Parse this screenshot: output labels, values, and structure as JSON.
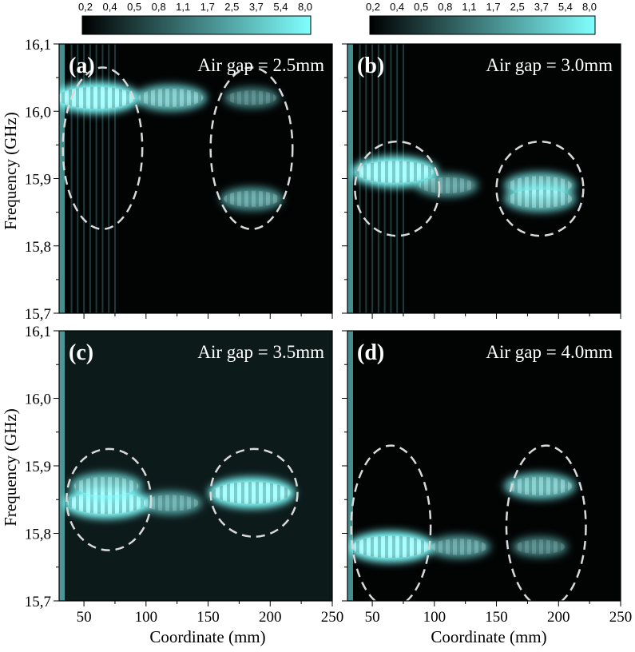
{
  "figure": {
    "xlabel": "Coordinate (mm)",
    "ylabel": "Frequency (GHz)",
    "x_ticks": [
      "50",
      "100",
      "150",
      "200",
      "250"
    ],
    "y_ticks": [
      "16,1",
      "16,0",
      "15,9",
      "15,8",
      "15,7"
    ]
  },
  "colorbar": {
    "labels": [
      "0,2",
      "0,4",
      "0,5",
      "0,8",
      "1,1",
      "1,7",
      "2,5",
      "3,7",
      "5,4",
      "8,0"
    ],
    "color_low": "#000000",
    "color_high": "#80ffff"
  },
  "chart_data": [
    {
      "type": "heatmap",
      "panel": "(a)",
      "title": "Air gap = 2.5mm",
      "xlim": [
        30,
        250
      ],
      "ylim": [
        15.7,
        16.1
      ],
      "hotspots": [
        {
          "x": 60,
          "y": 16.02,
          "intensity": 8.0
        },
        {
          "x": 120,
          "y": 16.02,
          "intensity": 5.4
        },
        {
          "x": 185,
          "y": 16.02,
          "intensity": 2.5
        },
        {
          "x": 185,
          "y": 15.87,
          "intensity": 3.7
        }
      ],
      "ellipses": [
        {
          "cx": 65,
          "cy": 15.945,
          "rx": 32,
          "ry": 0.12
        },
        {
          "cx": 185,
          "cy": 15.945,
          "rx": 33,
          "ry": 0.12
        }
      ]
    },
    {
      "type": "heatmap",
      "panel": "(b)",
      "title": "Air gap = 3.0mm",
      "xlim": [
        30,
        250
      ],
      "ylim": [
        15.7,
        16.1
      ],
      "hotspots": [
        {
          "x": 68,
          "y": 15.91,
          "intensity": 8.0
        },
        {
          "x": 110,
          "y": 15.89,
          "intensity": 3.7
        },
        {
          "x": 185,
          "y": 15.89,
          "intensity": 5.4
        },
        {
          "x": 185,
          "y": 15.87,
          "intensity": 5.4
        }
      ],
      "ellipses": [
        {
          "cx": 70,
          "cy": 15.885,
          "rx": 34,
          "ry": 0.07
        },
        {
          "cx": 185,
          "cy": 15.885,
          "rx": 35,
          "ry": 0.07
        }
      ]
    },
    {
      "type": "heatmap",
      "panel": "(c)",
      "title": "Air gap = 3.5mm",
      "xlim": [
        30,
        250
      ],
      "ylim": [
        15.7,
        16.1
      ],
      "hotspots": [
        {
          "x": 68,
          "y": 15.845,
          "intensity": 8.0
        },
        {
          "x": 68,
          "y": 15.87,
          "intensity": 5.4
        },
        {
          "x": 120,
          "y": 15.845,
          "intensity": 3.7
        },
        {
          "x": 185,
          "y": 15.86,
          "intensity": 8.0
        }
      ],
      "ellipses": [
        {
          "cx": 70,
          "cy": 15.85,
          "rx": 34,
          "ry": 0.075
        },
        {
          "cx": 187,
          "cy": 15.86,
          "rx": 35,
          "ry": 0.065
        }
      ]
    },
    {
      "type": "heatmap",
      "panel": "(d)",
      "title": "Air gap = 4.0mm",
      "xlim": [
        30,
        250
      ],
      "ylim": [
        15.7,
        16.1
      ],
      "hotspots": [
        {
          "x": 65,
          "y": 15.78,
          "intensity": 8.0
        },
        {
          "x": 120,
          "y": 15.78,
          "intensity": 3.7
        },
        {
          "x": 185,
          "y": 15.87,
          "intensity": 5.4
        },
        {
          "x": 185,
          "y": 15.78,
          "intensity": 2.5
        }
      ],
      "ellipses": [
        {
          "cx": 65,
          "cy": 15.81,
          "rx": 32,
          "ry": 0.12
        },
        {
          "cx": 190,
          "cy": 15.81,
          "rx": 32,
          "ry": 0.12
        }
      ]
    }
  ]
}
